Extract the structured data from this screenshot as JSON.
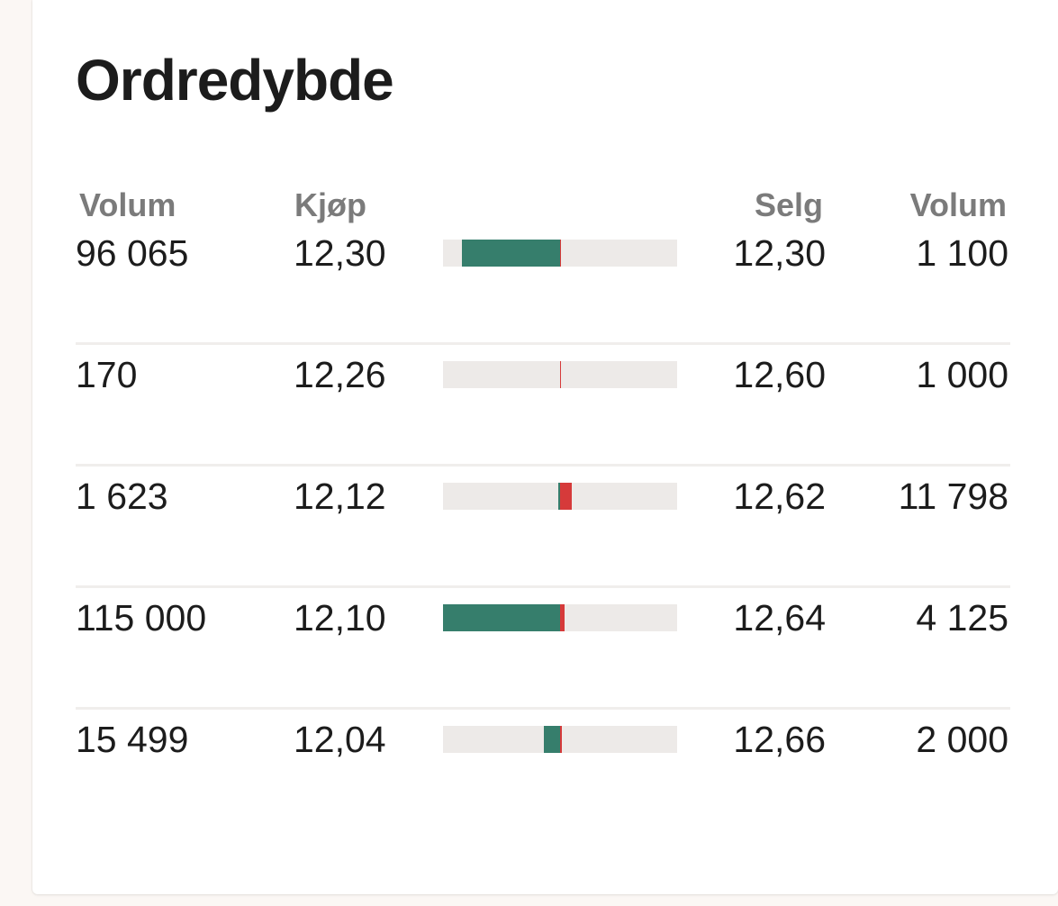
{
  "title": "Ordredybde",
  "headers": {
    "buy_volume": "Volum",
    "buy_price": "Kjøp",
    "sell_price": "Selg",
    "sell_volume": "Volum"
  },
  "colors": {
    "buy": "#367e6c",
    "sell": "#d63a3a",
    "bar_background": "#edeae8"
  },
  "rows": [
    {
      "buy_volume": "96 065",
      "buy_price": "12,30",
      "sell_price": "12,30",
      "sell_volume": "1 100",
      "buy_share": 0.835,
      "sell_share": 0.008
    },
    {
      "buy_volume": "170",
      "buy_price": "12,26",
      "sell_price": "12,60",
      "sell_volume": "1 000",
      "buy_share": 0.0,
      "sell_share": 0.008
    },
    {
      "buy_volume": "1 623",
      "buy_price": "12,12",
      "sell_price": "12,62",
      "sell_volume": "11 798",
      "buy_share": 0.015,
      "sell_share": 0.1
    },
    {
      "buy_volume": "115 000",
      "buy_price": "12,10",
      "sell_price": "12,64",
      "sell_volume": "4 125",
      "buy_share": 1.0,
      "sell_share": 0.035
    },
    {
      "buy_volume": "15 499",
      "buy_price": "12,04",
      "sell_price": "12,66",
      "sell_volume": "2 000",
      "buy_share": 0.135,
      "sell_share": 0.017
    }
  ]
}
